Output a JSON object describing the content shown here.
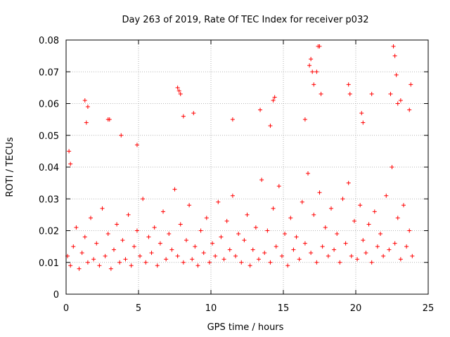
{
  "chart_data": {
    "type": "scatter",
    "title": "Day 263 of 2019, Rate Of TEC Index for receiver p032",
    "xlabel": "GPS time / hours",
    "ylabel": "ROTI / TECUs",
    "xlim": [
      0,
      25
    ],
    "ylim": [
      0,
      0.08
    ],
    "xticks": [
      0,
      5,
      10,
      15,
      20,
      25
    ],
    "yticks": [
      0,
      0.01,
      0.02,
      0.03,
      0.04,
      0.05,
      0.06,
      0.07,
      0.08
    ],
    "xtick_labels": [
      "0",
      "5",
      "10",
      "15",
      "20",
      "25"
    ],
    "ytick_labels": [
      "0",
      "0.01",
      "0.02",
      "0.03",
      "0.04",
      "0.05",
      "0.06",
      "0.07",
      "0.08"
    ],
    "grid": true,
    "marker": "+",
    "color": "#ff0000",
    "series": [
      {
        "name": "",
        "points": [
          [
            0.1,
            0.012
          ],
          [
            0.3,
            0.009
          ],
          [
            0.5,
            0.015
          ],
          [
            0.7,
            0.021
          ],
          [
            0.9,
            0.008
          ],
          [
            1.1,
            0.013
          ],
          [
            1.3,
            0.018
          ],
          [
            1.5,
            0.01
          ],
          [
            1.7,
            0.024
          ],
          [
            1.9,
            0.011
          ],
          [
            2.1,
            0.016
          ],
          [
            2.3,
            0.009
          ],
          [
            2.5,
            0.027
          ],
          [
            2.7,
            0.012
          ],
          [
            2.9,
            0.019
          ],
          [
            3.1,
            0.008
          ],
          [
            3.3,
            0.014
          ],
          [
            3.5,
            0.022
          ],
          [
            3.7,
            0.01
          ],
          [
            3.9,
            0.017
          ],
          [
            4.1,
            0.011
          ],
          [
            4.3,
            0.025
          ],
          [
            4.5,
            0.009
          ],
          [
            4.7,
            0.015
          ],
          [
            4.9,
            0.02
          ],
          [
            5.1,
            0.012
          ],
          [
            5.3,
            0.03
          ],
          [
            5.5,
            0.01
          ],
          [
            5.7,
            0.018
          ],
          [
            5.9,
            0.013
          ],
          [
            6.1,
            0.021
          ],
          [
            6.3,
            0.009
          ],
          [
            6.5,
            0.016
          ],
          [
            6.7,
            0.026
          ],
          [
            6.9,
            0.011
          ],
          [
            7.1,
            0.019
          ],
          [
            7.3,
            0.014
          ],
          [
            7.5,
            0.033
          ],
          [
            7.7,
            0.012
          ],
          [
            7.9,
            0.022
          ],
          [
            8.1,
            0.01
          ],
          [
            8.3,
            0.017
          ],
          [
            8.5,
            0.028
          ],
          [
            8.7,
            0.011
          ],
          [
            8.9,
            0.015
          ],
          [
            9.1,
            0.009
          ],
          [
            9.3,
            0.02
          ],
          [
            9.5,
            0.013
          ],
          [
            9.7,
            0.024
          ],
          [
            9.9,
            0.01
          ],
          [
            10.1,
            0.016
          ],
          [
            10.3,
            0.012
          ],
          [
            10.5,
            0.029
          ],
          [
            10.7,
            0.018
          ],
          [
            10.9,
            0.011
          ],
          [
            11.1,
            0.023
          ],
          [
            11.3,
            0.014
          ],
          [
            11.5,
            0.031
          ],
          [
            11.7,
            0.012
          ],
          [
            11.9,
            0.019
          ],
          [
            12.1,
            0.01
          ],
          [
            12.3,
            0.017
          ],
          [
            12.5,
            0.025
          ],
          [
            12.7,
            0.009
          ],
          [
            12.9,
            0.014
          ],
          [
            13.1,
            0.021
          ],
          [
            13.3,
            0.011
          ],
          [
            13.5,
            0.036
          ],
          [
            13.7,
            0.013
          ],
          [
            13.9,
            0.02
          ],
          [
            14.1,
            0.01
          ],
          [
            14.3,
            0.027
          ],
          [
            14.5,
            0.015
          ],
          [
            14.7,
            0.034
          ],
          [
            14.9,
            0.012
          ],
          [
            15.1,
            0.019
          ],
          [
            15.3,
            0.009
          ],
          [
            15.5,
            0.024
          ],
          [
            15.7,
            0.014
          ],
          [
            15.9,
            0.018
          ],
          [
            16.1,
            0.011
          ],
          [
            16.3,
            0.029
          ],
          [
            16.5,
            0.016
          ],
          [
            16.7,
            0.038
          ],
          [
            16.9,
            0.013
          ],
          [
            17.1,
            0.025
          ],
          [
            17.3,
            0.01
          ],
          [
            17.5,
            0.032
          ],
          [
            17.7,
            0.015
          ],
          [
            17.9,
            0.021
          ],
          [
            18.1,
            0.012
          ],
          [
            18.3,
            0.027
          ],
          [
            18.5,
            0.014
          ],
          [
            18.7,
            0.019
          ],
          [
            18.9,
            0.01
          ],
          [
            19.1,
            0.03
          ],
          [
            19.3,
            0.016
          ],
          [
            19.5,
            0.035
          ],
          [
            19.7,
            0.012
          ],
          [
            19.9,
            0.023
          ],
          [
            20.1,
            0.011
          ],
          [
            20.3,
            0.028
          ],
          [
            20.5,
            0.017
          ],
          [
            20.7,
            0.013
          ],
          [
            20.9,
            0.022
          ],
          [
            21.1,
            0.01
          ],
          [
            21.3,
            0.026
          ],
          [
            21.5,
            0.015
          ],
          [
            21.7,
            0.019
          ],
          [
            21.9,
            0.012
          ],
          [
            22.1,
            0.031
          ],
          [
            22.3,
            0.014
          ],
          [
            22.5,
            0.04
          ],
          [
            22.7,
            0.016
          ],
          [
            22.9,
            0.024
          ],
          [
            23.1,
            0.011
          ],
          [
            23.3,
            0.028
          ],
          [
            23.5,
            0.015
          ],
          [
            23.7,
            0.02
          ],
          [
            23.9,
            0.012
          ],
          [
            0.2,
            0.045
          ],
          [
            0.3,
            0.041
          ],
          [
            1.3,
            0.061
          ],
          [
            1.4,
            0.054
          ],
          [
            1.5,
            0.059
          ],
          [
            2.9,
            0.055
          ],
          [
            3.0,
            0.055
          ],
          [
            3.8,
            0.05
          ],
          [
            4.9,
            0.047
          ],
          [
            7.7,
            0.065
          ],
          [
            7.8,
            0.064
          ],
          [
            7.9,
            0.063
          ],
          [
            8.1,
            0.056
          ],
          [
            8.8,
            0.057
          ],
          [
            11.5,
            0.055
          ],
          [
            13.4,
            0.058
          ],
          [
            14.1,
            0.053
          ],
          [
            14.3,
            0.061
          ],
          [
            14.4,
            0.062
          ],
          [
            16.5,
            0.055
          ],
          [
            16.8,
            0.072
          ],
          [
            16.9,
            0.074
          ],
          [
            17.0,
            0.07
          ],
          [
            17.1,
            0.066
          ],
          [
            17.3,
            0.07
          ],
          [
            17.4,
            0.078
          ],
          [
            17.5,
            0.078
          ],
          [
            17.6,
            0.063
          ],
          [
            19.5,
            0.066
          ],
          [
            19.6,
            0.063
          ],
          [
            20.4,
            0.057
          ],
          [
            20.5,
            0.054
          ],
          [
            21.1,
            0.063
          ],
          [
            22.4,
            0.063
          ],
          [
            22.6,
            0.078
          ],
          [
            22.7,
            0.075
          ],
          [
            22.8,
            0.069
          ],
          [
            22.9,
            0.06
          ],
          [
            23.1,
            0.061
          ],
          [
            23.8,
            0.066
          ],
          [
            23.7,
            0.058
          ]
        ]
      }
    ]
  }
}
